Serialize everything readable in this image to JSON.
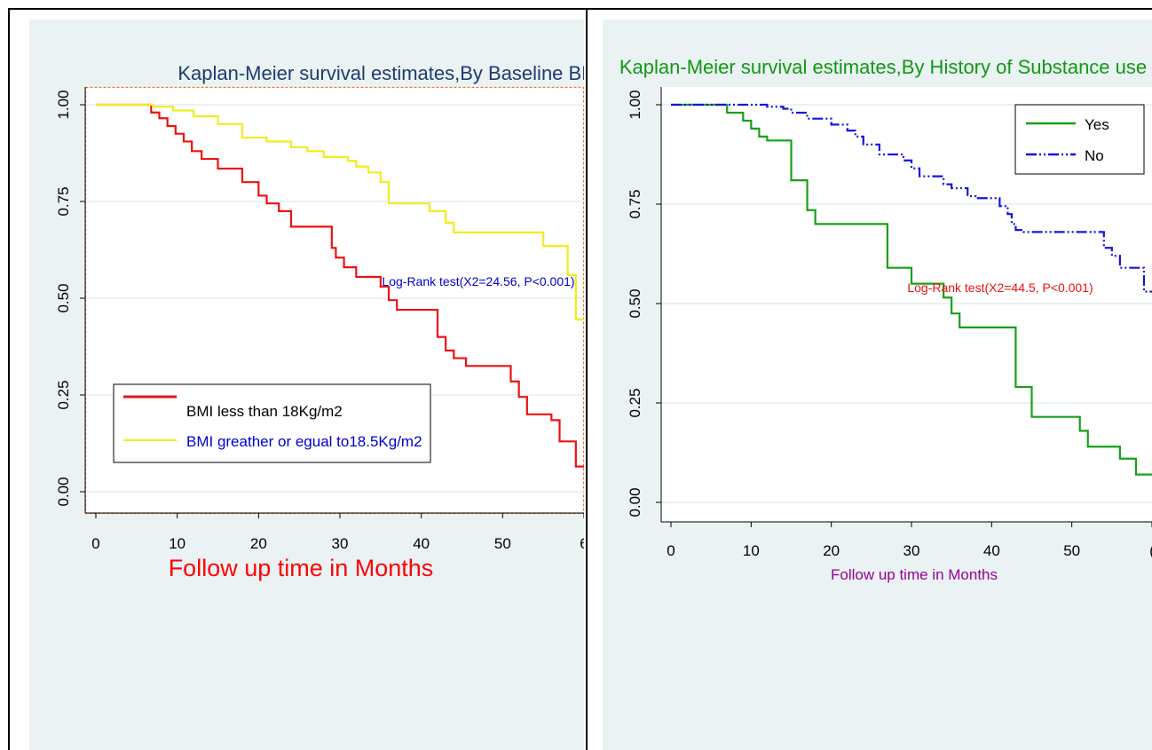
{
  "chart_data": [
    {
      "type": "line",
      "step": true,
      "title": "Kaplan-Meier survival estimates,By Baseline BMI",
      "xlabel": "Follow up  time in Months",
      "ylabel": "",
      "xlim": [
        0,
        60
      ],
      "ylim": [
        0,
        1
      ],
      "x_ticks": [
        "0",
        "10",
        "20",
        "30",
        "40",
        "50",
        "6"
      ],
      "y_ticks": [
        "0.00",
        "0.25",
        "0.50",
        "0.75",
        "1.00"
      ],
      "annotation": "Log-Rank test(X2=24.56, P<0.001)",
      "legend_position": "bottom-left",
      "colors": {
        "title": "#1f3a6e",
        "xlabel": "#ff0000",
        "annotation": "#0000cc",
        "legend_text_yellow": "#0000cc",
        "legend_text_red": "#000000"
      },
      "series": [
        {
          "name": "BMI less than 18Kg/m2",
          "color": "#ee1111",
          "style": "solid",
          "x": [
            0,
            6.8,
            7.8,
            8.8,
            9.8,
            10.8,
            11.8,
            13,
            15,
            18,
            20,
            21,
            22.5,
            24,
            29,
            29.5,
            30.5,
            32,
            35,
            36,
            37,
            42,
            43,
            44,
            45.5,
            51,
            52,
            53,
            56,
            57,
            59
          ],
          "y": [
            1,
            0.98,
            0.965,
            0.945,
            0.925,
            0.905,
            0.88,
            0.86,
            0.835,
            0.8,
            0.765,
            0.745,
            0.725,
            0.685,
            0.63,
            0.605,
            0.58,
            0.555,
            0.53,
            0.495,
            0.47,
            0.4,
            0.365,
            0.345,
            0.325,
            0.285,
            0.245,
            0.2,
            0.185,
            0.13,
            0.065
          ]
        },
        {
          "name": "BMI greather or egual to18.5Kg/m2",
          "color": "#f2ec1a",
          "style": "solid",
          "x": [
            0,
            7,
            9.5,
            12,
            15,
            18,
            21,
            24,
            26,
            28,
            31,
            32,
            33.5,
            35,
            36,
            41,
            43,
            44,
            55,
            58,
            59
          ],
          "y": [
            1,
            0.995,
            0.985,
            0.97,
            0.95,
            0.915,
            0.905,
            0.89,
            0.88,
            0.865,
            0.855,
            0.84,
            0.825,
            0.8,
            0.745,
            0.725,
            0.695,
            0.67,
            0.635,
            0.56,
            0.445
          ]
        }
      ]
    },
    {
      "type": "line",
      "step": true,
      "title": "Kaplan-Meier survival estimates,By History of Substance use",
      "xlabel": "Follow up time in Months",
      "ylabel": "",
      "xlim": [
        0,
        60
      ],
      "ylim": [
        0,
        1
      ],
      "x_ticks": [
        "0",
        "10",
        "20",
        "30",
        "40",
        "50",
        "("
      ],
      "y_ticks": [
        "0.00",
        "0.25",
        "0.50",
        "0.75",
        "1.00"
      ],
      "annotation": "Log-Rank test(X2=44.5, P<0.001)",
      "legend_position": "top-right",
      "colors": {
        "title": "#119911",
        "xlabel": "#990099",
        "annotation": "#ee1111"
      },
      "series": [
        {
          "name": "Yes",
          "color": "#18a018",
          "style": "solid",
          "x": [
            0,
            7,
            9,
            10,
            11,
            12,
            15,
            17,
            18,
            27,
            30,
            34,
            35,
            36,
            43,
            45,
            51,
            52,
            56,
            58
          ],
          "y": [
            1,
            0.98,
            0.96,
            0.94,
            0.92,
            0.91,
            0.81,
            0.735,
            0.7,
            0.59,
            0.55,
            0.515,
            0.475,
            0.44,
            0.29,
            0.215,
            0.18,
            0.14,
            0.11,
            0.07
          ]
        },
        {
          "name": "No",
          "color": "#1515dd",
          "style": "dashdot",
          "x": [
            0,
            12,
            14,
            15,
            17,
            20,
            22,
            23,
            24,
            26,
            27,
            29,
            30,
            31,
            34,
            35,
            37,
            38,
            41,
            42,
            42.5,
            43,
            44,
            54,
            55,
            56,
            59
          ],
          "y": [
            1,
            0.995,
            0.99,
            0.98,
            0.965,
            0.95,
            0.935,
            0.92,
            0.9,
            0.875,
            0.875,
            0.86,
            0.84,
            0.82,
            0.8,
            0.79,
            0.77,
            0.765,
            0.745,
            0.725,
            0.7,
            0.685,
            0.68,
            0.64,
            0.62,
            0.59,
            0.53
          ]
        }
      ]
    }
  ]
}
